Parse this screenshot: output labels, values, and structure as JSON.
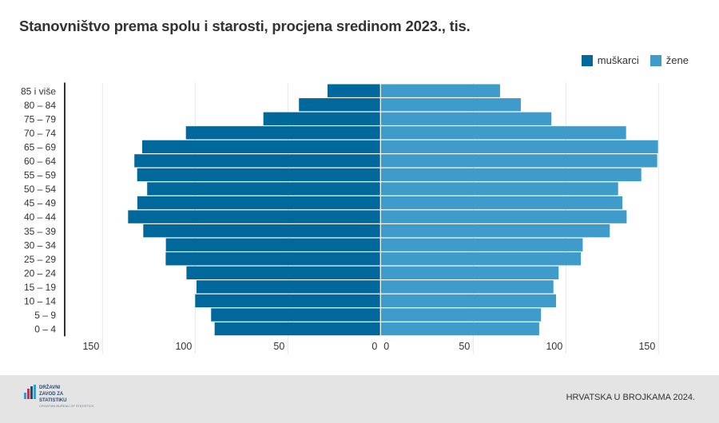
{
  "chart_data": {
    "type": "bar",
    "orientation": "horizontal",
    "layout": "population-pyramid",
    "title": "Stanovništvo prema spolu i starosti, procjena sredinom 2023., tis.",
    "categories": [
      "85 i više",
      "80 – 84",
      "75 – 79",
      "70 – 74",
      "65 – 69",
      "60 – 64",
      "55 – 59",
      "50 – 54",
      "45 – 49",
      "40 – 44",
      "35 – 39",
      "30 – 34",
      "25 – 29",
      "20 – 24",
      "15 – 19",
      "10 – 14",
      "5 – 9",
      "0 – 4"
    ],
    "series": [
      {
        "name": "muškarci",
        "color": "#01689b",
        "side": "left",
        "values": [
          28.6,
          44.0,
          63.2,
          105.0,
          128.6,
          132.8,
          131.3,
          125.9,
          131.2,
          136.2,
          128.0,
          115.8,
          115.9,
          104.7,
          99.3,
          100.0,
          91.4,
          89.5
        ]
      },
      {
        "name": "žene",
        "color": "#3f9cca",
        "side": "right",
        "values": [
          64.5,
          75.7,
          92.2,
          132.5,
          149.7,
          149.3,
          140.7,
          128.2,
          130.5,
          132.8,
          123.7,
          109.1,
          108.1,
          96.1,
          93.3,
          94.7,
          86.6,
          85.6
        ]
      }
    ],
    "xlim": [
      -150,
      150
    ],
    "xticks_left": [
      "150",
      "100",
      "50",
      "0"
    ],
    "xticks_right": [
      "0",
      "50",
      "100",
      "150"
    ],
    "grid": true,
    "legend_position": "top-right"
  },
  "footer": {
    "source": "HRVATSKA U BROJKAMA 2024.",
    "logo_text": [
      "DRŽAVNI",
      "ZAVOD ZA",
      "STATISTIKU"
    ],
    "logo_subtext": "CROATIAN BUREAU OF STATISTICS"
  }
}
